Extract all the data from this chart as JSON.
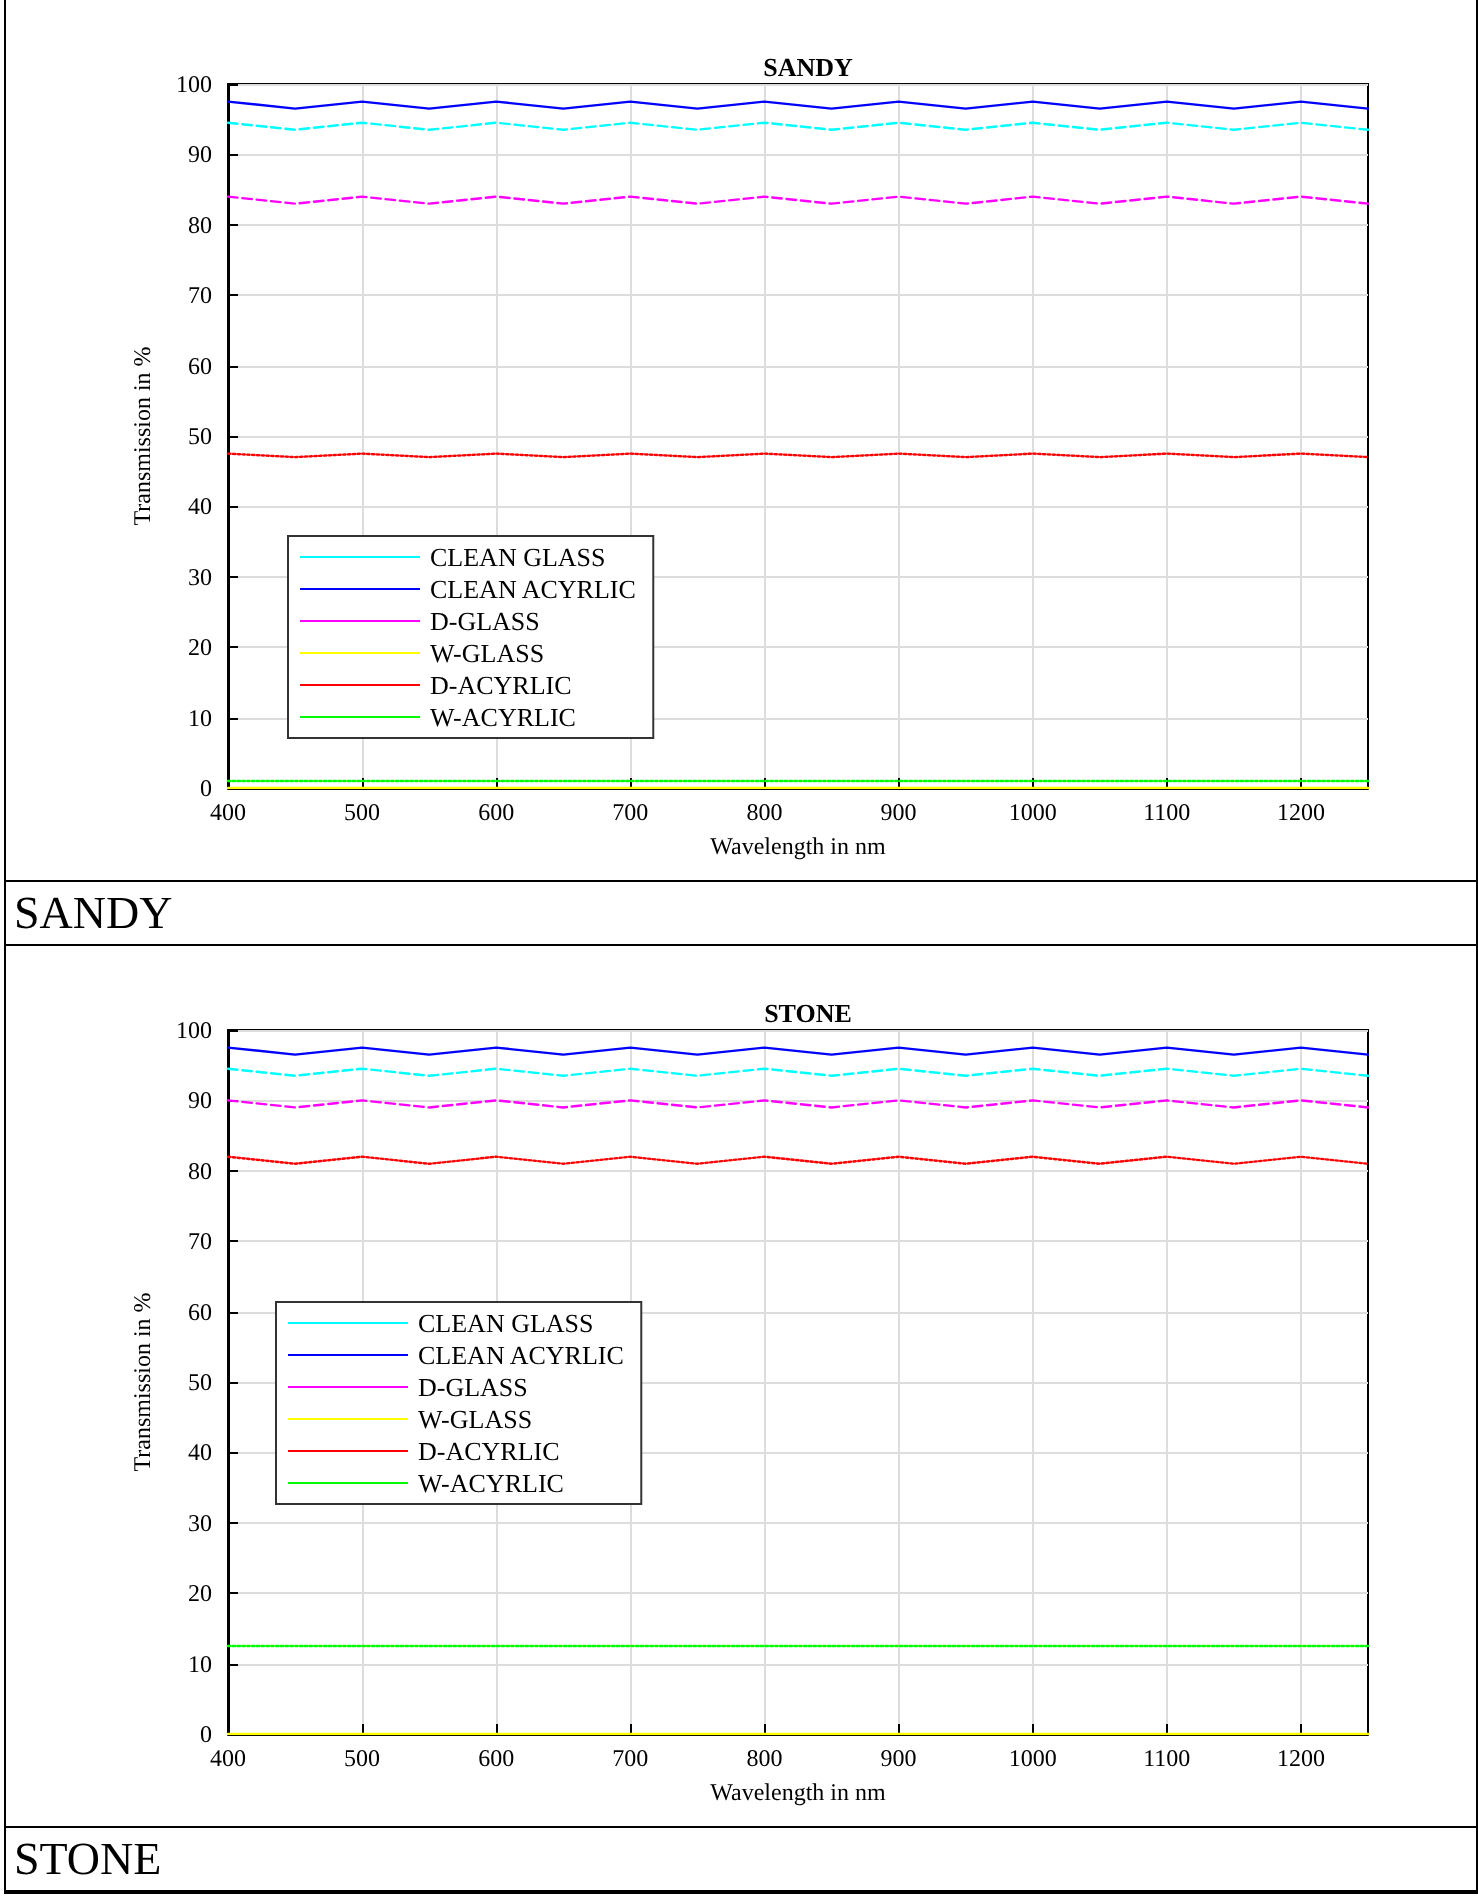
{
  "chart_data": [
    {
      "type": "line",
      "title": "SANDY",
      "xlabel": "Wavelength in nm",
      "ylabel": "Transmission in %",
      "annotations": [
        "SANDY"
      ],
      "x": [
        400,
        450,
        500,
        550,
        600,
        650,
        700,
        750,
        800,
        850,
        900,
        950,
        1000,
        1050,
        1100,
        1150,
        1200,
        1250
      ],
      "series": [
        {
          "name": "CLEAN GLASS",
          "color": "#00ffff",
          "line_style": "dashed",
          "values": [
            94.5,
            93.5,
            94.5,
            93.5,
            94.5,
            93.5,
            94.5,
            93.5,
            94.5,
            93.5,
            94.5,
            93.5,
            94.5,
            93.5,
            94.5,
            93.5,
            94.5,
            93.5
          ]
        },
        {
          "name": "CLEAN ACYRLIC",
          "color": "#0000ff",
          "line_style": "solid",
          "values": [
            97.5,
            96.5,
            97.5,
            96.5,
            97.5,
            96.5,
            97.5,
            96.5,
            97.5,
            96.5,
            97.5,
            96.5,
            97.5,
            96.5,
            97.5,
            96.5,
            97.5,
            96.5
          ]
        },
        {
          "name": "D-GLASS",
          "color": "#ff00ff",
          "line_style": "dashed",
          "values": [
            84,
            83,
            84,
            83,
            84,
            83,
            84,
            83,
            84,
            83,
            84,
            83,
            84,
            83,
            84,
            83,
            84,
            83
          ]
        },
        {
          "name": "W-GLASS",
          "color": "#ffff00",
          "line_style": "solid",
          "values": [
            0,
            0,
            0,
            0,
            0,
            0,
            0,
            0,
            0,
            0,
            0,
            0,
            0,
            0,
            0,
            0,
            0,
            0
          ]
        },
        {
          "name": "D-ACYRLIC",
          "color": "#ff0000",
          "line_style": "dotted",
          "values": [
            47.5,
            47,
            47.5,
            47,
            47.5,
            47,
            47.5,
            47,
            47.5,
            47,
            47.5,
            47,
            47.5,
            47,
            47.5,
            47,
            47.5,
            47
          ]
        },
        {
          "name": "W-ACYRLIC",
          "color": "#00ff00",
          "line_style": "dotted",
          "values": [
            1,
            1,
            1,
            1,
            1,
            1,
            1,
            1,
            1,
            1,
            1,
            1,
            1,
            1,
            1,
            1,
            1,
            1
          ]
        }
      ],
      "xlim": [
        400,
        1250
      ],
      "xticks": [
        400,
        500,
        600,
        700,
        800,
        900,
        1000,
        1100,
        1200
      ],
      "ylim": [
        0,
        100
      ],
      "yticks": [
        0,
        10,
        20,
        30,
        40,
        50,
        60,
        70,
        80,
        90,
        100
      ],
      "grid": true,
      "legend": "bottom left",
      "marker": "none"
    },
    {
      "type": "line",
      "title": "STONE",
      "xlabel": "Wavelength in nm",
      "ylabel": "Transmission in %",
      "annotations": [
        "STONE"
      ],
      "x": [
        400,
        450,
        500,
        550,
        600,
        650,
        700,
        750,
        800,
        850,
        900,
        950,
        1000,
        1050,
        1100,
        1150,
        1200,
        1250
      ],
      "series": [
        {
          "name": "CLEAN GLASS",
          "color": "#00ffff",
          "line_style": "dashed",
          "values": [
            94.5,
            93.5,
            94.5,
            93.5,
            94.5,
            93.5,
            94.5,
            93.5,
            94.5,
            93.5,
            94.5,
            93.5,
            94.5,
            93.5,
            94.5,
            93.5,
            94.5,
            93.5
          ]
        },
        {
          "name": "CLEAN ACYRLIC",
          "color": "#0000ff",
          "line_style": "solid",
          "values": [
            97.5,
            96.5,
            97.5,
            96.5,
            97.5,
            96.5,
            97.5,
            96.5,
            97.5,
            96.5,
            97.5,
            96.5,
            97.5,
            96.5,
            97.5,
            96.5,
            97.5,
            96.5
          ]
        },
        {
          "name": "D-GLASS",
          "color": "#ff00ff",
          "line_style": "dashed",
          "values": [
            90,
            89,
            90,
            89,
            90,
            89,
            90,
            89,
            90,
            89,
            90,
            89,
            90,
            89,
            90,
            89,
            90,
            89
          ]
        },
        {
          "name": "W-GLASS",
          "color": "#ffff00",
          "line_style": "solid",
          "values": [
            0,
            0,
            0,
            0,
            0,
            0,
            0,
            0,
            0,
            0,
            0,
            0,
            0,
            0,
            0,
            0,
            0,
            0
          ]
        },
        {
          "name": "D-ACYRLIC",
          "color": "#ff0000",
          "line_style": "dotted",
          "values": [
            82,
            81,
            82,
            81,
            82,
            81,
            82,
            81,
            82,
            81,
            82,
            81,
            82,
            81,
            82,
            81,
            82,
            81
          ]
        },
        {
          "name": "W-ACYRLIC",
          "color": "#00ff00",
          "line_style": "dotted",
          "values": [
            12.5,
            12.5,
            12.5,
            12.5,
            12.5,
            12.5,
            12.5,
            12.5,
            12.5,
            12.5,
            12.5,
            12.5,
            12.5,
            12.5,
            12.5,
            12.5,
            12.5,
            12.5
          ]
        }
      ],
      "xlim": [
        400,
        1250
      ],
      "xticks": [
        400,
        500,
        600,
        700,
        800,
        900,
        1000,
        1100,
        1200
      ],
      "ylim": [
        0,
        100
      ],
      "yticks": [
        0,
        10,
        20,
        30,
        40,
        50,
        60,
        70,
        80,
        90,
        100
      ],
      "grid": true,
      "legend": "left",
      "marker": "none"
    }
  ]
}
